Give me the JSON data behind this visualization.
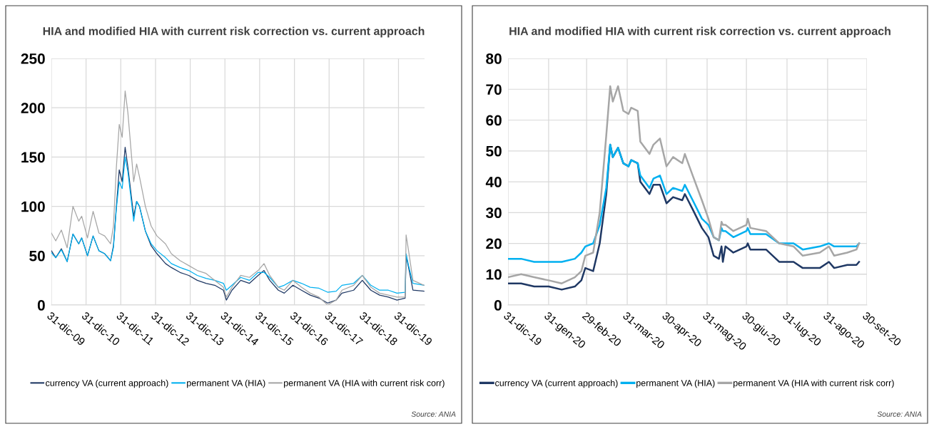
{
  "chart_data": [
    {
      "type": "line",
      "title": "HIA and modified HIA with current risk correction vs. current approach",
      "x": [
        "2009-12-31",
        "2010-02-15",
        "2010-04-15",
        "2010-06-15",
        "2010-08-15",
        "2010-10-15",
        "2010-11-15",
        "2011-01-15",
        "2011-03-15",
        "2011-05-15",
        "2011-07-15",
        "2011-09-15",
        "2011-10-15",
        "2011-11-15",
        "2011-12-15",
        "2012-01-15",
        "2012-02-15",
        "2012-03-15",
        "2012-05-15",
        "2012-06-15",
        "2012-07-15",
        "2012-09-15",
        "2012-11-15",
        "2013-01-15",
        "2013-04-15",
        "2013-06-15",
        "2013-09-15",
        "2013-12-15",
        "2014-03-15",
        "2014-06-15",
        "2014-09-15",
        "2014-12-15",
        "2015-01-15",
        "2015-03-15",
        "2015-06-15",
        "2015-09-15",
        "2015-12-15",
        "2016-02-15",
        "2016-04-15",
        "2016-07-15",
        "2016-09-15",
        "2016-12-15",
        "2017-03-15",
        "2017-06-15",
        "2017-09-15",
        "2017-12-15",
        "2018-03-15",
        "2018-05-15",
        "2018-09-15",
        "2018-12-15",
        "2019-03-15",
        "2019-06-15",
        "2019-09-15",
        "2019-12-15",
        "2020-03-10",
        "2020-03-20",
        "2020-04-15",
        "2020-05-31",
        "2020-09-24"
      ],
      "series": [
        {
          "name": "currency VA (current approach)",
          "color": "#1f3864",
          "values": [
            55,
            48,
            57,
            44,
            72,
            62,
            68,
            50,
            70,
            55,
            52,
            45,
            60,
            100,
            137,
            125,
            160,
            140,
            90,
            105,
            100,
            75,
            60,
            52,
            42,
            38,
            33,
            30,
            25,
            22,
            20,
            15,
            5,
            15,
            25,
            22,
            30,
            35,
            25,
            15,
            12,
            20,
            15,
            10,
            7,
            2,
            5,
            12,
            15,
            25,
            15,
            10,
            8,
            5,
            7,
            50,
            38,
            15,
            14
          ]
        },
        {
          "name": "permanent VA (HIA)",
          "color": "#00b0f0",
          "values": [
            53,
            48,
            56,
            44,
            72,
            62,
            68,
            50,
            70,
            55,
            52,
            45,
            58,
            98,
            125,
            118,
            150,
            135,
            85,
            105,
            100,
            75,
            62,
            55,
            48,
            42,
            38,
            35,
            30,
            27,
            25,
            22,
            15,
            20,
            28,
            25,
            33,
            33,
            28,
            18,
            20,
            25,
            22,
            18,
            17,
            13,
            14,
            20,
            22,
            30,
            20,
            15,
            15,
            12,
            13,
            52,
            40,
            22,
            20
          ]
        },
        {
          "name": "permanent VA (HIA with current risk corr)",
          "color": "#a6a6a6",
          "values": [
            73,
            65,
            76,
            58,
            100,
            85,
            90,
            68,
            95,
            73,
            70,
            62,
            80,
            140,
            183,
            170,
            217,
            195,
            125,
            143,
            130,
            100,
            80,
            70,
            62,
            52,
            45,
            40,
            35,
            32,
            25,
            18,
            8,
            18,
            30,
            28,
            35,
            42,
            30,
            18,
            15,
            25,
            18,
            12,
            8,
            0,
            5,
            15,
            20,
            30,
            18,
            12,
            10,
            8,
            8,
            71,
            55,
            25,
            20
          ]
        }
      ],
      "xlim": [
        "2009-12-31",
        "2020-09-30"
      ],
      "xticks": [
        {
          "value": "2009-12-31",
          "label": "31-dic-09"
        },
        {
          "value": "2010-12-31",
          "label": "31-dic-10"
        },
        {
          "value": "2011-12-31",
          "label": "31-dic-11"
        },
        {
          "value": "2012-12-31",
          "label": "31-dic-12"
        },
        {
          "value": "2013-12-31",
          "label": "31-dic-13"
        },
        {
          "value": "2014-12-31",
          "label": "31-dic-14"
        },
        {
          "value": "2015-12-31",
          "label": "31-dic-15"
        },
        {
          "value": "2016-12-31",
          "label": "31-dic-16"
        },
        {
          "value": "2017-12-31",
          "label": "31-dic-17"
        },
        {
          "value": "2018-12-31",
          "label": "31-dic-18"
        },
        {
          "value": "2019-12-31",
          "label": "31-dic-19"
        }
      ],
      "ylim": [
        0,
        250
      ],
      "yticks": [
        0,
        50,
        100,
        150,
        200,
        250
      ],
      "grid": true,
      "legend": "bottom",
      "marker": "none",
      "line_style": "solid",
      "annotations": [
        "Source: ANIA"
      ]
    },
    {
      "type": "line",
      "title": "HIA and modified HIA with current risk correction vs. current approach",
      "x": [
        "2019-12-31",
        "2020-01-10",
        "2020-01-20",
        "2020-01-31",
        "2020-02-10",
        "2020-02-20",
        "2020-02-25",
        "2020-02-28",
        "2020-03-05",
        "2020-03-10",
        "2020-03-15",
        "2020-03-18",
        "2020-03-20",
        "2020-03-24",
        "2020-03-28",
        "2020-04-01",
        "2020-04-03",
        "2020-04-08",
        "2020-04-10",
        "2020-04-17",
        "2020-04-20",
        "2020-04-25",
        "2020-04-30",
        "2020-05-05",
        "2020-05-12",
        "2020-05-14",
        "2020-05-20",
        "2020-05-27",
        "2020-06-01",
        "2020-06-05",
        "2020-06-09",
        "2020-06-11",
        "2020-06-12",
        "2020-06-14",
        "2020-06-20",
        "2020-06-30",
        "2020-07-01",
        "2020-07-03",
        "2020-07-15",
        "2020-07-25",
        "2020-08-05",
        "2020-08-12",
        "2020-08-25",
        "2020-09-01",
        "2020-09-05",
        "2020-09-15",
        "2020-09-22",
        "2020-09-24"
      ],
      "series": [
        {
          "name": "currency VA (current approach)",
          "color": "#1f3864",
          "values": [
            7,
            7,
            6,
            6,
            5,
            6,
            8,
            12,
            11,
            20,
            36,
            52,
            48,
            51,
            46,
            45,
            47,
            46,
            40,
            36,
            39,
            39,
            33,
            35,
            34,
            36,
            31,
            25,
            22,
            16,
            15,
            19,
            14,
            19,
            17,
            19,
            20,
            18,
            18,
            14,
            14,
            12,
            12,
            14,
            12,
            13,
            13,
            14
          ]
        },
        {
          "name": "permanent VA (HIA)",
          "color": "#00b0f0",
          "values": [
            15,
            15,
            14,
            14,
            14,
            15,
            17,
            19,
            20,
            26,
            38,
            52,
            48,
            51,
            46,
            45,
            47,
            46,
            42,
            38,
            41,
            42,
            36,
            38,
            37,
            39,
            34,
            28,
            26,
            22,
            21,
            25,
            24,
            24,
            22,
            24,
            25,
            23,
            23,
            20,
            20,
            18,
            19,
            20,
            19,
            19,
            19,
            20
          ]
        },
        {
          "name": "permanent VA (HIA with current risk corr)",
          "color": "#a6a6a6",
          "values": [
            9,
            10,
            9,
            8,
            7,
            9,
            11,
            16,
            17,
            30,
            55,
            71,
            66,
            71,
            63,
            62,
            64,
            63,
            53,
            49,
            52,
            54,
            45,
            48,
            46,
            49,
            42,
            34,
            28,
            22,
            21,
            27,
            26,
            26,
            24,
            26,
            28,
            25,
            24,
            20,
            19,
            16,
            17,
            19,
            16,
            17,
            18,
            20
          ]
        }
      ],
      "xlim": [
        "2019-12-31",
        "2020-09-30"
      ],
      "xticks": [
        {
          "value": "2019-12-31",
          "label": "31-dic-19"
        },
        {
          "value": "2020-01-31",
          "label": "31-gen-20"
        },
        {
          "value": "2020-02-29",
          "label": "29-feb-20"
        },
        {
          "value": "2020-03-31",
          "label": "31-mar-20"
        },
        {
          "value": "2020-04-30",
          "label": "30-apr-20"
        },
        {
          "value": "2020-05-31",
          "label": "31-mag-20"
        },
        {
          "value": "2020-06-30",
          "label": "30-giu-20"
        },
        {
          "value": "2020-07-31",
          "label": "31-lug-20"
        },
        {
          "value": "2020-08-31",
          "label": "31-ago-20"
        },
        {
          "value": "2020-09-30",
          "label": "30-set-20"
        }
      ],
      "ylim": [
        0,
        80
      ],
      "yticks": [
        0,
        10,
        20,
        30,
        40,
        50,
        60,
        70,
        80
      ],
      "grid": true,
      "legend": "bottom",
      "marker": "none",
      "line_style": "solid",
      "annotations": [
        "Source: ANIA"
      ]
    }
  ]
}
